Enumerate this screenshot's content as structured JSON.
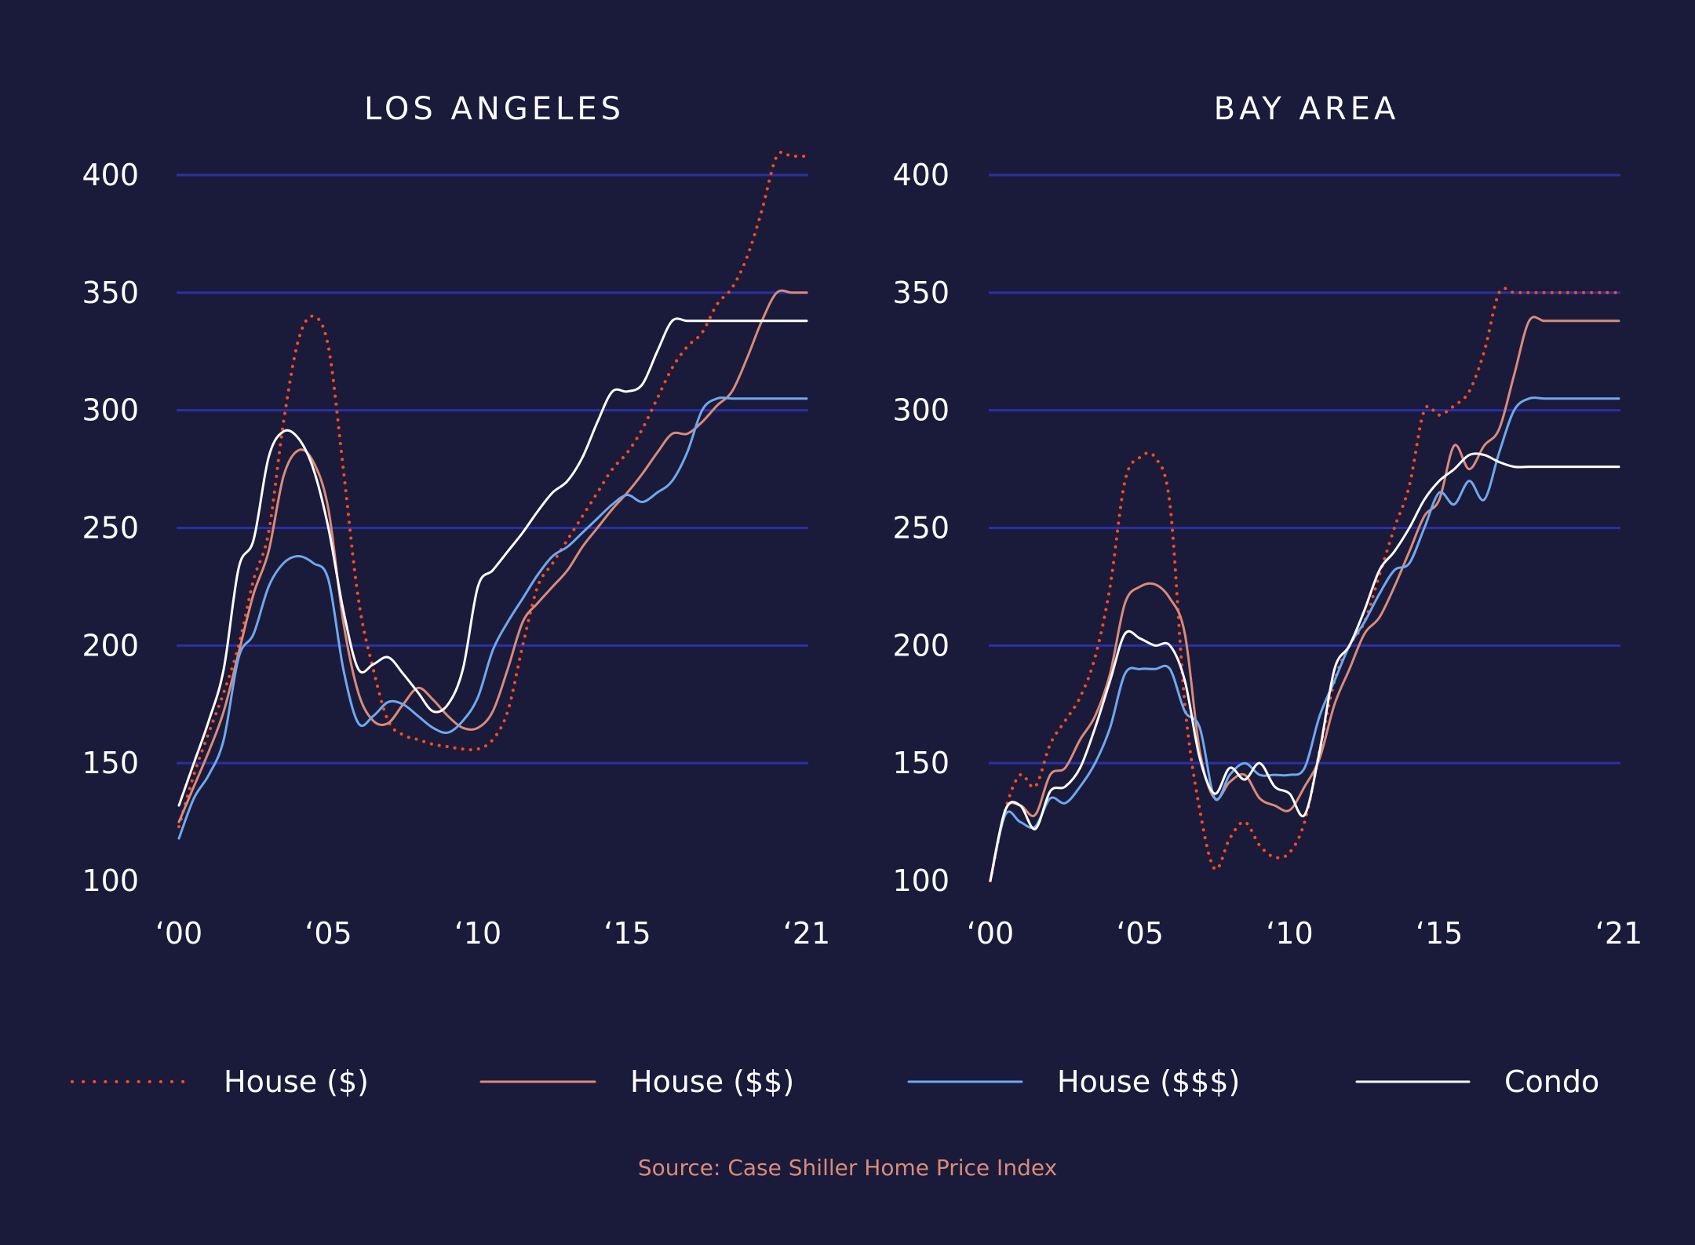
{
  "colors": {
    "background": "#1a1b3a",
    "grid": "#2b2fa6",
    "house_low": "#ff4a1c",
    "house_mid": "#d98b7a",
    "house_high": "#6fa8ee",
    "condo": "#ffffff",
    "source": "#d98b7a"
  },
  "legend": [
    {
      "label": "House ($)",
      "style": "dotted",
      "color_key": "house_low"
    },
    {
      "label": "House ($$)",
      "style": "solid",
      "color_key": "house_mid"
    },
    {
      "label": "House ($$$)",
      "style": "solid",
      "color_key": "house_high"
    },
    {
      "label": "Condo",
      "style": "solid",
      "color_key": "condo"
    }
  ],
  "source": "Source: Case Shiller Home Price Index",
  "chart_data": [
    {
      "type": "line",
      "title": "LOS ANGELES",
      "xlim": [
        2000,
        2021
      ],
      "ylim": [
        100,
        400
      ],
      "yticks": [
        100,
        150,
        200,
        250,
        300,
        350,
        400
      ],
      "yticklabels": [
        "100",
        "150",
        "200",
        "250",
        "300",
        "350",
        "400"
      ],
      "xticks": [
        2000,
        2005,
        2010,
        2015,
        2021
      ],
      "xticklabels": [
        "‘00",
        "‘05",
        "‘10",
        "‘15",
        "‘21"
      ],
      "grid": true,
      "x": [
        2000,
        2000.5,
        2001,
        2001.5,
        2002,
        2002.5,
        2003,
        2003.5,
        2004,
        2004.5,
        2005,
        2005.5,
        2006,
        2006.5,
        2007,
        2007.5,
        2008,
        2008.5,
        2009,
        2009.5,
        2010,
        2010.5,
        2011,
        2011.5,
        2012,
        2012.5,
        2013,
        2013.5,
        2014,
        2014.5,
        2015,
        2015.5,
        2016,
        2016.5,
        2017,
        2017.5,
        2018,
        2018.5,
        2019,
        2019.5,
        2020,
        2020.5,
        2021
      ],
      "series": [
        {
          "name": "House ($)",
          "color_key": "house_low",
          "style": "dotted",
          "values": [
            123,
            145,
            163,
            180,
            200,
            228,
            248,
            295,
            330,
            340,
            327,
            275,
            220,
            190,
            168,
            162,
            160,
            158,
            157,
            156,
            156,
            160,
            172,
            200,
            225,
            235,
            245,
            255,
            265,
            275,
            282,
            292,
            305,
            318,
            327,
            333,
            345,
            352,
            365,
            385,
            408,
            408,
            408
          ]
        },
        {
          "name": "House ($$)",
          "color_key": "house_mid",
          "style": "solid",
          "values": [
            125,
            140,
            155,
            172,
            197,
            222,
            240,
            272,
            283,
            278,
            258,
            210,
            180,
            168,
            167,
            175,
            182,
            177,
            170,
            165,
            165,
            172,
            190,
            210,
            218,
            225,
            232,
            242,
            250,
            258,
            265,
            273,
            282,
            290,
            290,
            295,
            302,
            308,
            322,
            338,
            350,
            350,
            350
          ]
        },
        {
          "name": "House ($$$)",
          "color_key": "house_high",
          "style": "solid",
          "values": [
            118,
            135,
            145,
            160,
            195,
            205,
            225,
            235,
            238,
            235,
            228,
            190,
            167,
            170,
            176,
            175,
            170,
            165,
            163,
            168,
            178,
            198,
            210,
            220,
            230,
            238,
            242,
            248,
            254,
            260,
            264,
            261,
            265,
            270,
            282,
            300,
            305,
            305,
            305,
            305,
            305,
            305,
            305
          ]
        },
        {
          "name": "Condo",
          "color_key": "condo",
          "style": "solid",
          "values": [
            132,
            150,
            168,
            190,
            233,
            245,
            280,
            291,
            288,
            275,
            250,
            215,
            190,
            192,
            195,
            188,
            180,
            172,
            175,
            190,
            225,
            232,
            240,
            248,
            257,
            265,
            270,
            280,
            295,
            308,
            308,
            311,
            325,
            338,
            338,
            338,
            338,
            338,
            338,
            338,
            338,
            338,
            338
          ]
        }
      ]
    },
    {
      "type": "line",
      "title": "BAY AREA",
      "xlim": [
        2000,
        2021
      ],
      "ylim": [
        100,
        400
      ],
      "yticks": [
        100,
        150,
        200,
        250,
        300,
        350,
        400
      ],
      "yticklabels": [
        "100",
        "150",
        "200",
        "250",
        "300",
        "350",
        "400"
      ],
      "xticks": [
        2000,
        2005,
        2010,
        2015,
        2021
      ],
      "xticklabels": [
        "‘00",
        "‘05",
        "‘10",
        "‘15",
        "‘21"
      ],
      "grid": true,
      "x": [
        2000,
        2000.5,
        2001,
        2001.5,
        2002,
        2002.5,
        2003,
        2003.5,
        2004,
        2004.5,
        2005,
        2005.5,
        2006,
        2006.5,
        2007,
        2007.5,
        2008,
        2008.5,
        2009,
        2009.5,
        2010,
        2010.5,
        2011,
        2011.5,
        2012,
        2012.5,
        2013,
        2013.5,
        2014,
        2014.5,
        2015,
        2015.5,
        2016,
        2016.5,
        2017,
        2017.5,
        2018,
        2018.5,
        2019,
        2019.5,
        2020,
        2020.5,
        2021
      ],
      "series": [
        {
          "name": "House ($)",
          "color_key": "house_low",
          "style": "dotted",
          "values": [
            100,
            130,
            145,
            140,
            158,
            168,
            178,
            195,
            225,
            270,
            280,
            280,
            260,
            175,
            130,
            105,
            118,
            125,
            115,
            110,
            112,
            125,
            155,
            185,
            200,
            210,
            230,
            250,
            268,
            300,
            298,
            302,
            308,
            325,
            350,
            350,
            350,
            350,
            350,
            350,
            350,
            350,
            350
          ]
        },
        {
          "name": "House ($$)",
          "color_key": "house_mid",
          "style": "solid",
          "values": [
            100,
            130,
            132,
            128,
            145,
            148,
            160,
            170,
            188,
            218,
            225,
            226,
            220,
            205,
            155,
            135,
            142,
            145,
            135,
            132,
            130,
            140,
            152,
            175,
            190,
            205,
            212,
            225,
            240,
            255,
            262,
            285,
            275,
            285,
            292,
            315,
            338,
            338,
            338,
            338,
            338,
            338,
            338
          ]
        },
        {
          "name": "House ($$$)",
          "color_key": "house_high",
          "style": "solid",
          "values": [
            100,
            128,
            125,
            123,
            135,
            133,
            140,
            150,
            165,
            188,
            190,
            190,
            190,
            172,
            165,
            135,
            145,
            150,
            145,
            145,
            145,
            148,
            170,
            185,
            200,
            210,
            222,
            232,
            235,
            250,
            265,
            260,
            270,
            262,
            282,
            300,
            305,
            305,
            305,
            305,
            305,
            305,
            305
          ]
        },
        {
          "name": "Condo",
          "color_key": "condo",
          "style": "solid",
          "values": [
            100,
            130,
            132,
            122,
            138,
            140,
            148,
            165,
            185,
            205,
            203,
            200,
            200,
            185,
            152,
            137,
            148,
            143,
            150,
            140,
            137,
            128,
            155,
            190,
            200,
            215,
            232,
            240,
            250,
            262,
            270,
            275,
            281,
            281,
            278,
            276,
            276,
            276,
            276,
            276,
            276,
            276,
            276
          ]
        }
      ]
    }
  ]
}
